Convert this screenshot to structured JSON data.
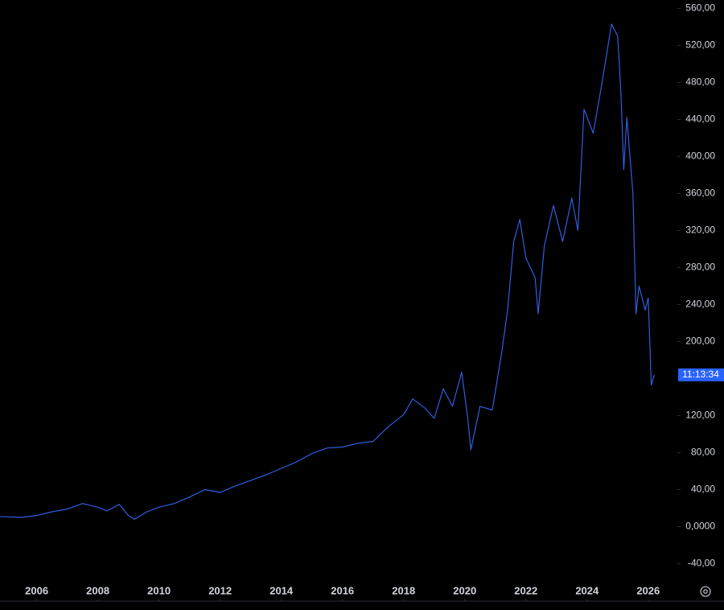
{
  "chart_data": {
    "type": "line",
    "x": [
      2004.8,
      2005.5,
      2006,
      2006.5,
      2007,
      2007.5,
      2008,
      2008.3,
      2008.7,
      2009.0,
      2009.2,
      2009.6,
      2010,
      2010.5,
      2011,
      2011.5,
      2012,
      2012.5,
      2013,
      2013.5,
      2014,
      2014.5,
      2015,
      2015.5,
      2016,
      2016.5,
      2017,
      2017.5,
      2018,
      2018.3,
      2018.7,
      2019,
      2019.3,
      2019.6,
      2019.9,
      2020.1,
      2020.2,
      2020.5,
      2020.9,
      2021.2,
      2021.4,
      2021.6,
      2021.8,
      2022.0,
      2022.3,
      2022.4,
      2022.6,
      2022.9,
      2023.2,
      2023.5,
      2023.7,
      2023.9,
      2024.2,
      2024.5,
      2024.8,
      2025.0,
      2025.1,
      2025.2,
      2025.3,
      2025.5,
      2025.6,
      2025.7,
      2025.9,
      2026.0,
      2026.1,
      2026.2
    ],
    "series": [
      {
        "color": "#2f5fe0",
        "values": [
          11,
          10,
          12,
          16,
          19,
          25,
          21,
          17,
          24,
          12,
          8,
          16,
          21,
          25,
          32,
          40,
          37,
          44,
          50,
          56,
          63,
          70,
          79,
          85,
          86,
          90,
          92,
          108,
          121,
          138,
          128,
          117,
          149,
          130,
          167,
          117,
          83,
          130,
          126,
          186,
          234,
          308,
          332,
          290,
          269,
          230,
          303,
          347,
          308,
          355,
          320,
          451,
          425,
          482,
          543,
          530,
          473,
          386,
          442,
          360,
          230,
          260,
          234,
          247,
          153,
          164
        ]
      }
    ],
    "xlim": [
      2004.8,
      2026.9
    ],
    "xticks": [
      2006,
      2008,
      2010,
      2012,
      2014,
      2016,
      2018,
      2020,
      2022,
      2024,
      2026
    ],
    "ylim": [
      -57,
      569
    ],
    "yticks": [
      {
        "value": -40,
        "label": "-40,00"
      },
      {
        "value": 0,
        "label": "0,0000"
      },
      {
        "value": 40,
        "label": "40,00"
      },
      {
        "value": 80,
        "label": "80,00"
      },
      {
        "value": 120,
        "label": "120,00"
      },
      {
        "value": 200,
        "label": "200,00"
      },
      {
        "value": 240,
        "label": "240,00"
      },
      {
        "value": 280,
        "label": "280,00"
      },
      {
        "value": 320,
        "label": "320,00"
      },
      {
        "value": 360,
        "label": "360,00"
      },
      {
        "value": 400,
        "label": "400,00"
      },
      {
        "value": 440,
        "label": "440,00"
      },
      {
        "value": 480,
        "label": "480,00"
      },
      {
        "value": 520,
        "label": "520,00"
      },
      {
        "value": 560,
        "label": "560,00"
      }
    ],
    "price_tag": "11:13:34"
  }
}
